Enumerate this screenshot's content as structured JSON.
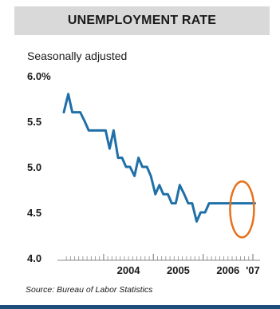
{
  "header": {
    "title": "UNEMPLOYMENT RATE"
  },
  "footer": {
    "source": "Source: Bureau of Labor Statistics"
  },
  "colors": {
    "line": "#1f6fa8",
    "highlight": "#e8701a",
    "header_bg": "#d9d9d9",
    "rule": "#1e4f7a"
  },
  "chart_data": {
    "type": "line",
    "subtitle": "Seasonally adjusted",
    "xlabel": "",
    "ylabel": "",
    "ylim": [
      4.0,
      6.0
    ],
    "yticks": [
      "6.0%",
      "5.5",
      "5.0",
      "4.5",
      "4.0"
    ],
    "ytick_values": [
      6.0,
      5.5,
      5.0,
      4.5,
      4.0
    ],
    "xticks": [
      "2004",
      "2005",
      "2006",
      "'07"
    ],
    "xtick_values": [
      2004.0,
      2005.0,
      2006.0,
      2007.0
    ],
    "xlim": [
      2003.2,
      2007.08
    ],
    "grid": false,
    "series": [
      {
        "x": [
          2003.2,
          2003.29,
          2003.37,
          2003.45,
          2003.53,
          2003.62,
          2003.7,
          2003.78,
          2003.87,
          2003.95,
          2004.04,
          2004.12,
          2004.2,
          2004.29,
          2004.37,
          2004.45,
          2004.53,
          2004.62,
          2004.7,
          2004.78,
          2004.87,
          2004.95,
          2005.04,
          2005.12,
          2005.2,
          2005.29,
          2005.37,
          2005.45,
          2005.53,
          2005.62,
          2005.7,
          2005.78,
          2005.87,
          2005.95,
          2006.04,
          2006.12,
          2006.2,
          2006.29,
          2006.37,
          2006.45,
          2006.53,
          2006.62,
          2006.7,
          2006.78,
          2006.87,
          2006.95,
          2007.04
        ],
        "values": [
          5.6,
          5.8,
          5.6,
          5.6,
          5.6,
          5.5,
          5.4,
          5.4,
          5.4,
          5.4,
          5.4,
          5.2,
          5.4,
          5.1,
          5.1,
          5.0,
          5.0,
          4.9,
          5.1,
          5.0,
          5.0,
          4.9,
          4.7,
          4.8,
          4.7,
          4.7,
          4.6,
          4.6,
          4.8,
          4.7,
          4.6,
          4.6,
          4.4,
          4.5,
          4.5,
          4.6,
          4.6,
          4.6,
          4.6,
          4.6,
          4.6,
          4.6,
          4.6,
          4.6,
          4.6,
          4.6,
          4.6
        ]
      }
    ],
    "annotations": [
      {
        "type": "circle",
        "label": "",
        "x": 2006.75,
        "y": 4.55
      }
    ]
  }
}
